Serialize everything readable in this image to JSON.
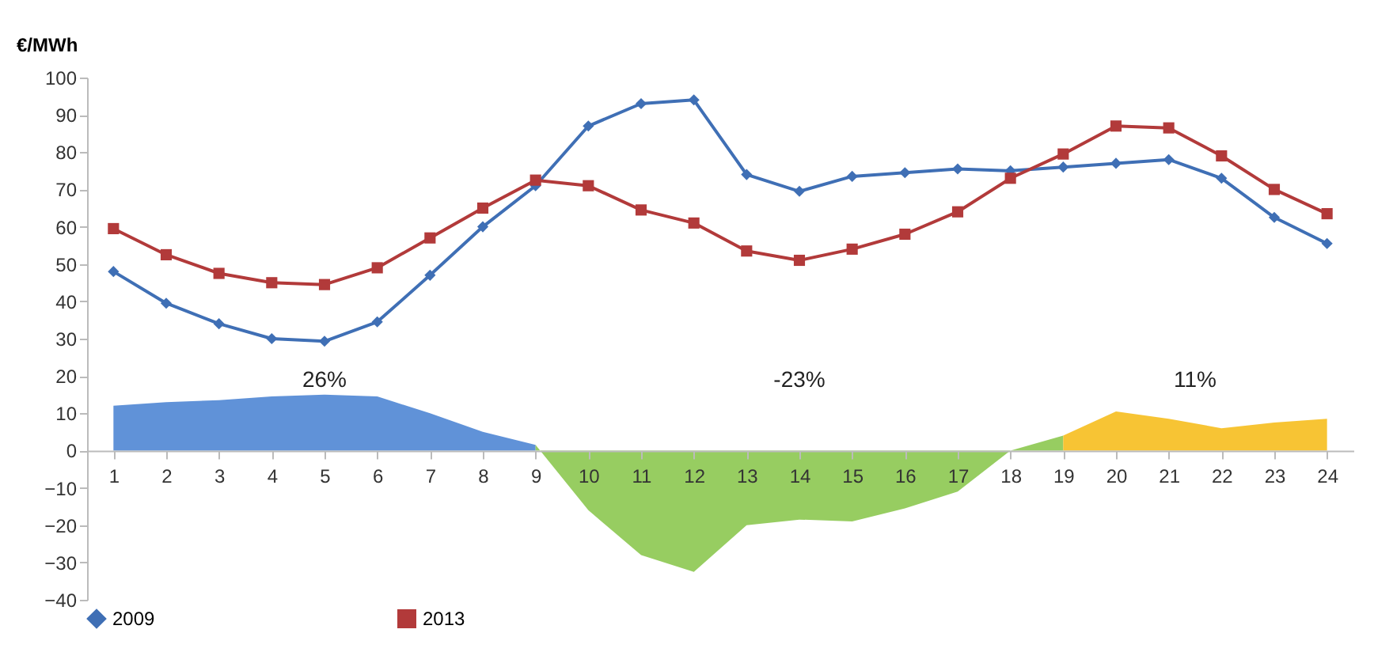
{
  "chart_data": {
    "type": "line",
    "ylabel": "€/MWh",
    "x": [
      1,
      2,
      3,
      4,
      5,
      6,
      7,
      8,
      9,
      10,
      11,
      12,
      13,
      14,
      15,
      16,
      17,
      18,
      19,
      20,
      21,
      22,
      23,
      24
    ],
    "xlim": [
      0.5,
      24.5
    ],
    "xticks": [
      1,
      2,
      3,
      4,
      5,
      6,
      7,
      8,
      9,
      10,
      11,
      12,
      13,
      14,
      15,
      16,
      17,
      18,
      19,
      20,
      21,
      22,
      23,
      24
    ],
    "ylim": [
      -40,
      100
    ],
    "yticks": [
      -40,
      -30,
      -20,
      -10,
      0,
      10,
      20,
      30,
      40,
      50,
      60,
      70,
      80,
      90,
      100
    ],
    "series": [
      {
        "type": "area",
        "color": "#4f86d4",
        "x": [
          1,
          2,
          3,
          4,
          5,
          6,
          7,
          8,
          9
        ],
        "values": [
          12,
          13,
          13.5,
          14.5,
          15,
          14.5,
          10,
          5,
          1.5
        ]
      },
      {
        "type": "area",
        "color": "#8cc850",
        "x": [
          9,
          10,
          11,
          12,
          13,
          14,
          15,
          16,
          17,
          18,
          19
        ],
        "values": [
          1.5,
          -16,
          -28,
          -32.5,
          -20,
          -18.5,
          -19,
          -15.5,
          -11,
          0,
          4
        ]
      },
      {
        "type": "area",
        "color": "#f6be1e",
        "x": [
          19,
          20,
          21,
          22,
          23,
          24
        ],
        "values": [
          4,
          10.5,
          8.5,
          6,
          7.5,
          8.5
        ]
      },
      {
        "name": "2009",
        "color": "#3f6fb5",
        "marker": "diamond",
        "values": [
          48,
          39.5,
          34,
          30,
          29.3,
          34.5,
          47,
          60,
          71,
          87,
          93,
          94,
          74,
          69.5,
          73.5,
          74.5,
          75.5,
          75,
          76,
          77,
          78,
          73,
          62.5,
          55.5
        ]
      },
      {
        "name": "2013",
        "color": "#b23a3a",
        "marker": "square",
        "values": [
          59.5,
          52.5,
          47.5,
          45,
          44.5,
          49,
          57,
          65,
          72.5,
          71,
          64.5,
          61,
          53.5,
          51,
          54,
          58,
          64,
          73,
          79.5,
          87,
          86.5,
          79,
          70,
          63.5
        ]
      }
    ],
    "annotations": [
      "26%",
      "-23%",
      "11%"
    ],
    "legend": "bottom",
    "line_style": "solid"
  }
}
